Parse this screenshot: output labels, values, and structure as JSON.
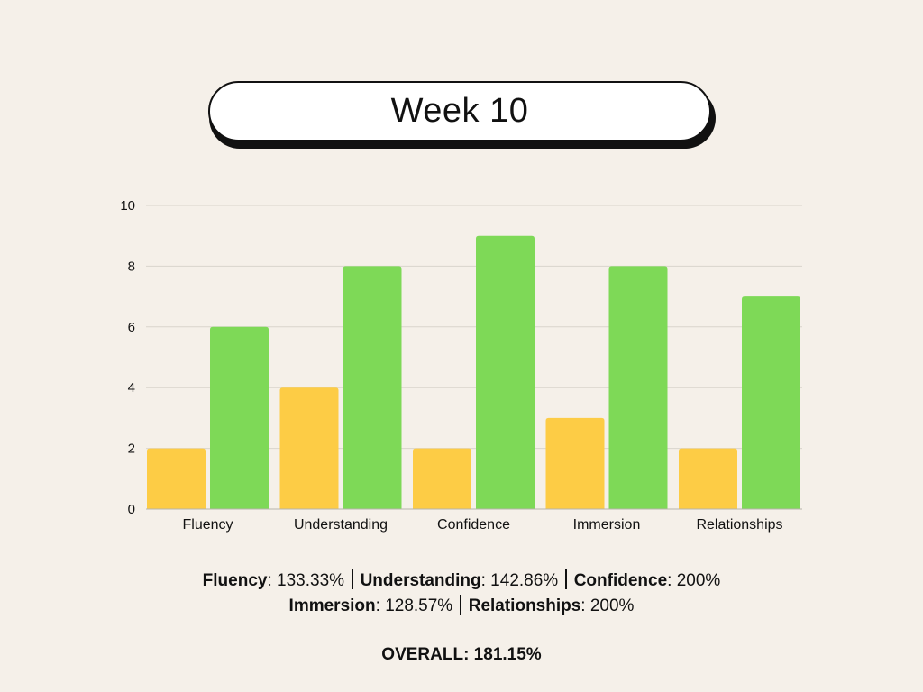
{
  "title": "Week 10",
  "colors": {
    "background": "#F5F0E9",
    "series_a": "#FDCC45",
    "series_b": "#7ED957",
    "grid": "#D9D4CC"
  },
  "chart_data": {
    "type": "bar",
    "categories": [
      "Fluency",
      "Understanding",
      "Confidence",
      "Immersion",
      "Relationships"
    ],
    "series": [
      {
        "values": [
          2,
          4,
          2,
          3,
          2
        ]
      },
      {
        "values": [
          6,
          8,
          9,
          8,
          7
        ]
      }
    ],
    "ylim": [
      0,
      10
    ],
    "yticks": [
      "0",
      "2",
      "4",
      "6",
      "8",
      "10"
    ],
    "grid": true
  },
  "stats": {
    "line1": [
      {
        "name": "Fluency",
        "value": ": 133.33%"
      },
      {
        "name": "Understanding",
        "value": ": 142.86%"
      },
      {
        "name": "Confidence",
        "value": ": 200%"
      }
    ],
    "line2": [
      {
        "name": "Immersion",
        "value": ": 128.57%"
      },
      {
        "name": "Relationships",
        "value": ": 200%"
      }
    ],
    "overall": "OVERALL: 181.15%"
  }
}
